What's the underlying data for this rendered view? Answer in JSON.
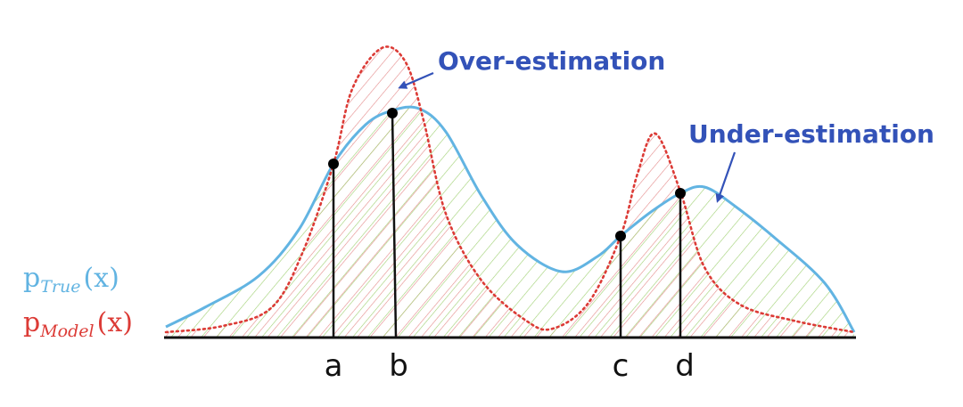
{
  "colors": {
    "true_curve": "#62b4e2",
    "model_curve": "#dc3b36",
    "over_hatch": "#e48a8a",
    "under_hatch": "#9fd072",
    "callout_text": "#3352b8",
    "axis": "#111111"
  },
  "annotations": {
    "over": "Over-estimation",
    "under": "Under-estimation"
  },
  "markers": [
    "a",
    "b",
    "c",
    "d"
  ],
  "legend": {
    "true_prefix": "p",
    "true_subscript": "True",
    "true_suffix": "(x)",
    "model_prefix": "p",
    "model_subscript": "Model",
    "model_suffix": "(x)"
  }
}
